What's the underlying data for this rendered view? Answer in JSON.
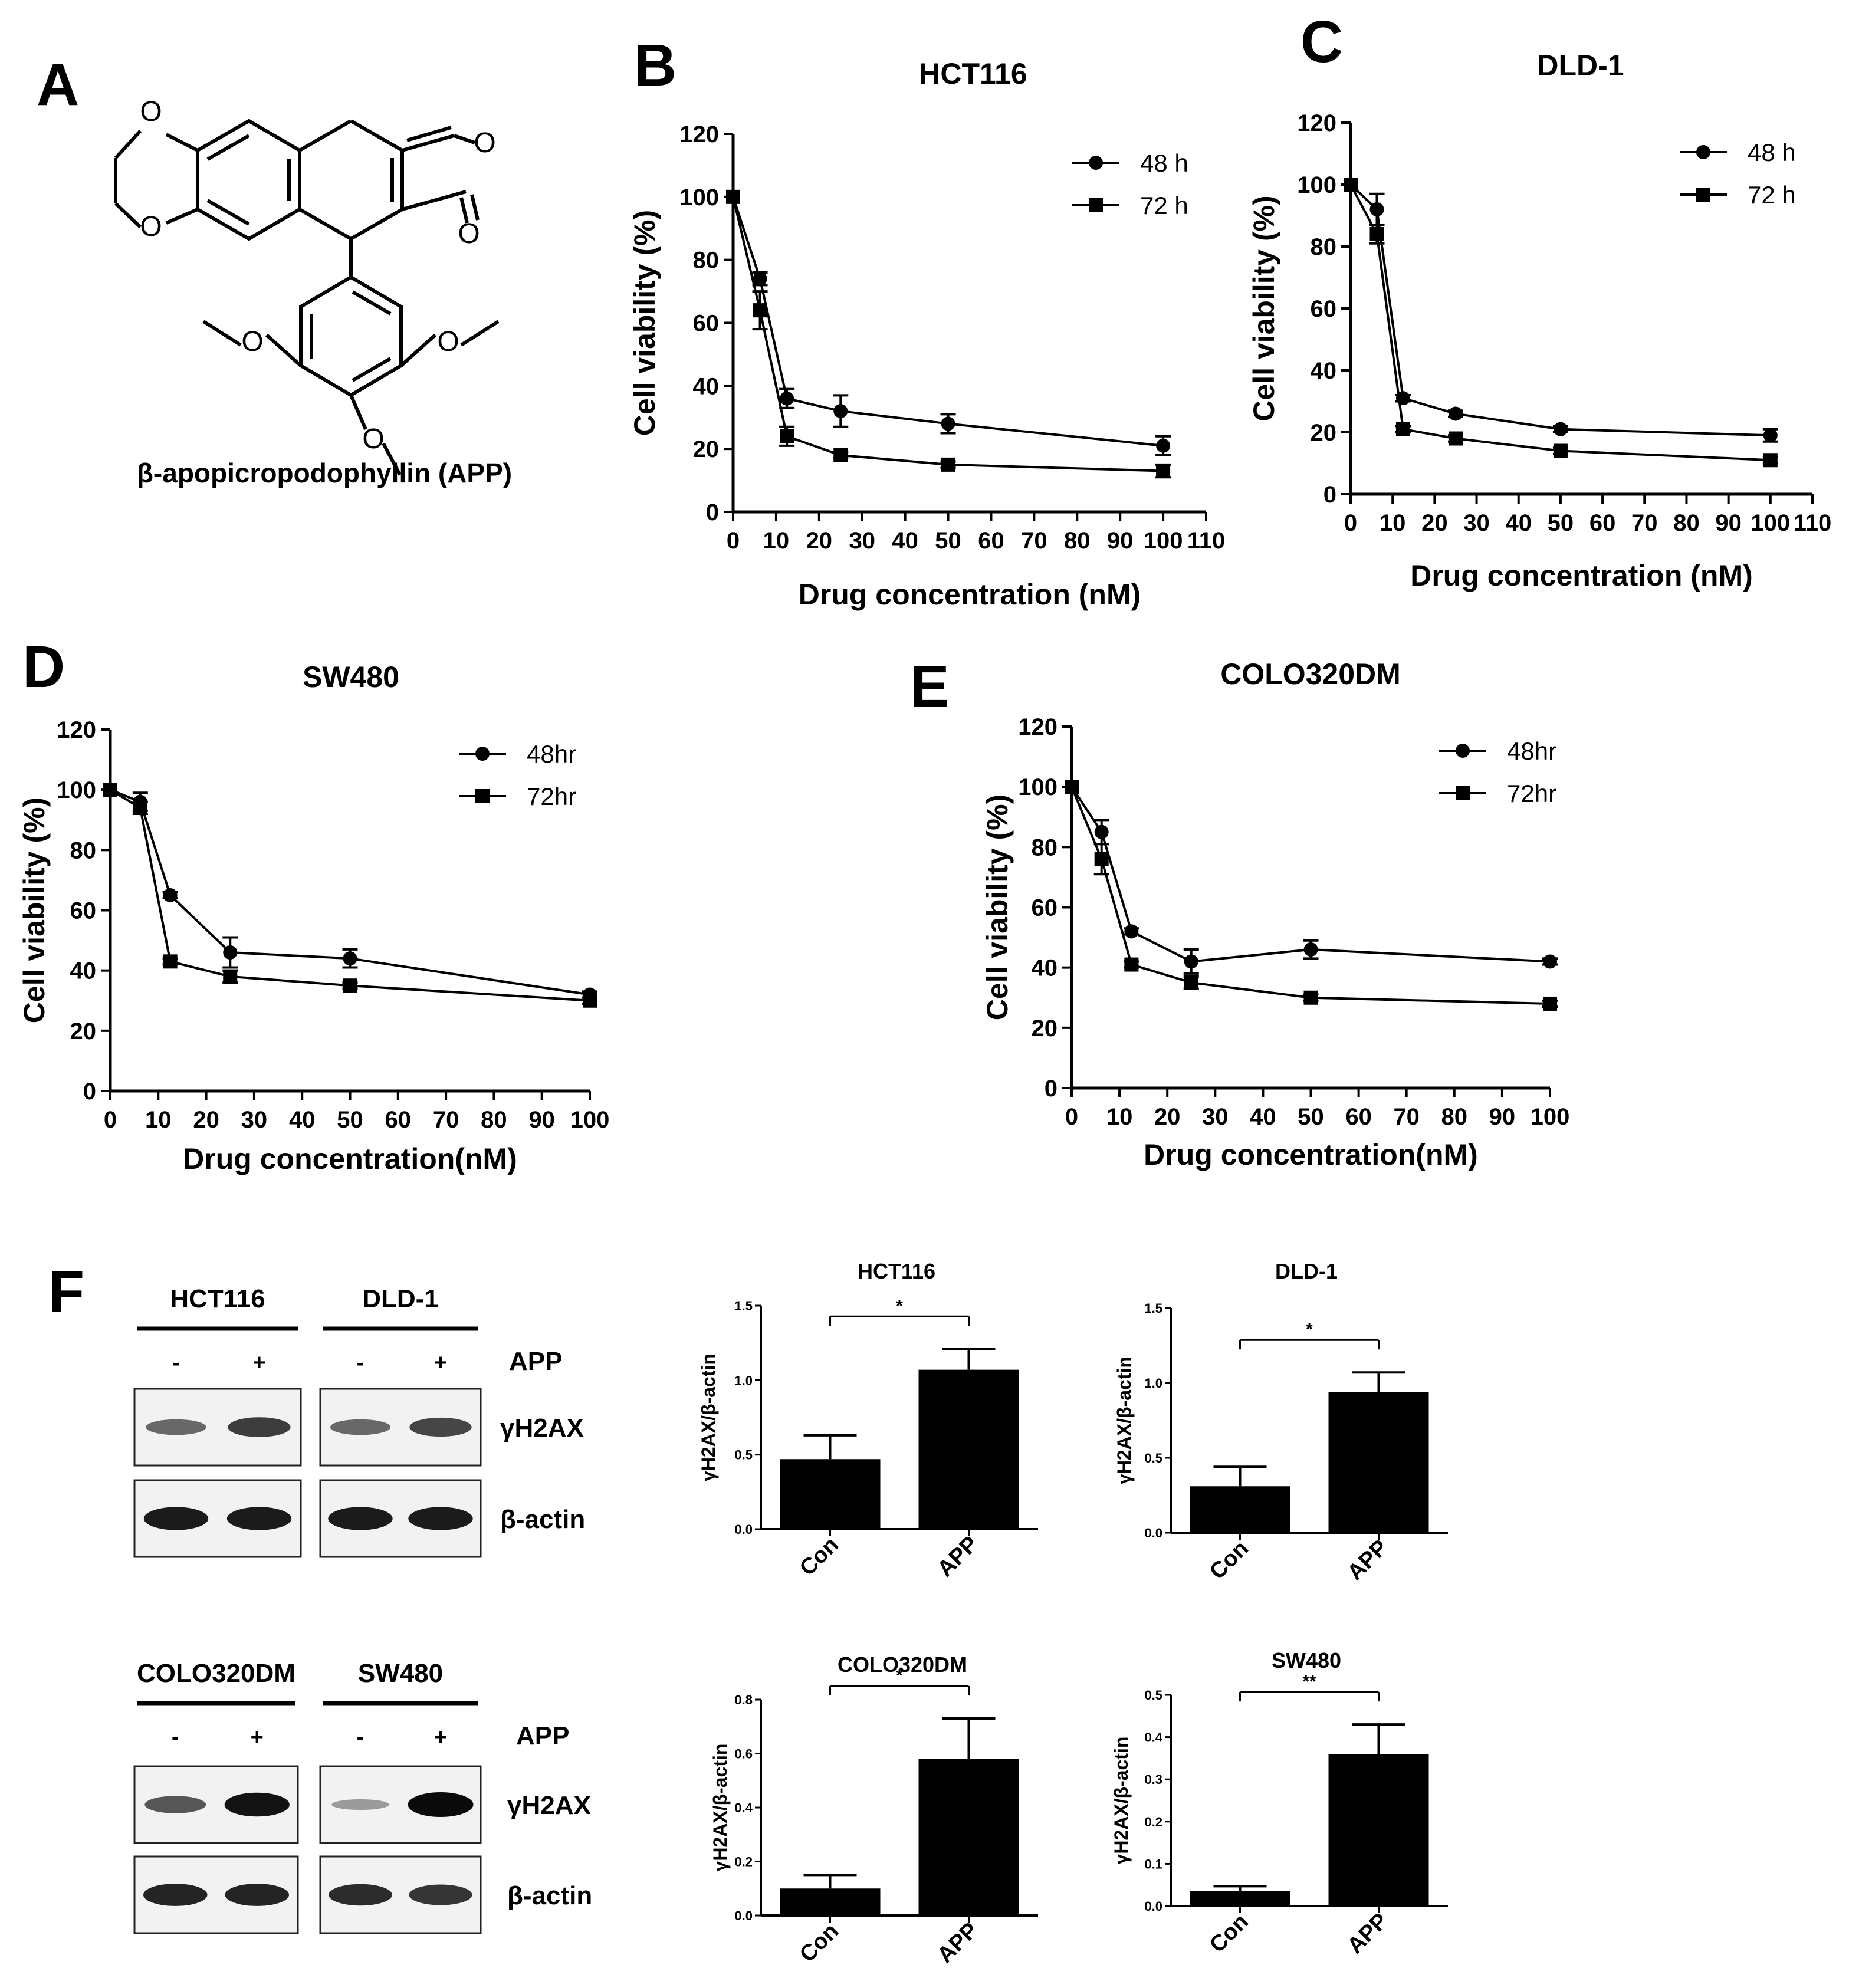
{
  "panels": {
    "a": "A",
    "b": "B",
    "c": "C",
    "d": "D",
    "e": "E",
    "f": "F"
  },
  "structure": {
    "atom_label": "O",
    "caption": "β-apopicropodophyllin (APP)"
  },
  "chart_data": [
    {
      "id": "B",
      "type": "line",
      "title": "HCT116",
      "xlabel": "Drug concentration (nM)",
      "ylabel": "Cell viability (%)",
      "xlim": [
        0,
        110
      ],
      "ylim": [
        0,
        120
      ],
      "xticks": [
        0,
        10,
        20,
        30,
        40,
        50,
        60,
        70,
        80,
        90,
        100,
        110
      ],
      "yticks": [
        0,
        20,
        40,
        60,
        80,
        100,
        120
      ],
      "legend_position": "top-right",
      "series": [
        {
          "name": "48 h",
          "marker": "circle",
          "x": [
            0,
            6.25,
            12.5,
            25,
            50,
            100
          ],
          "y": [
            100,
            74,
            36,
            32,
            28,
            21
          ],
          "err": [
            0,
            2,
            3,
            5,
            3,
            3
          ]
        },
        {
          "name": "72 h",
          "marker": "square",
          "x": [
            0,
            6.25,
            12.5,
            25,
            50,
            100
          ],
          "y": [
            100,
            64,
            24,
            18,
            15,
            13
          ],
          "err": [
            0,
            6,
            3,
            1,
            1,
            2
          ]
        }
      ]
    },
    {
      "id": "C",
      "type": "line",
      "title": "DLD-1",
      "xlabel": "Drug concentration (nM)",
      "ylabel": "Cell viability (%)",
      "xlim": [
        0,
        110
      ],
      "ylim": [
        0,
        120
      ],
      "xticks": [
        0,
        10,
        20,
        30,
        40,
        50,
        60,
        70,
        80,
        90,
        100,
        110
      ],
      "yticks": [
        0,
        20,
        40,
        60,
        80,
        100,
        120
      ],
      "legend_position": "top-right",
      "series": [
        {
          "name": "48 h",
          "marker": "circle",
          "x": [
            0,
            6.25,
            12.5,
            25,
            50,
            100
          ],
          "y": [
            100,
            92,
            31,
            26,
            21,
            19
          ],
          "err": [
            0,
            5,
            1,
            1,
            1,
            2
          ]
        },
        {
          "name": "72 h",
          "marker": "square",
          "x": [
            0,
            6.25,
            12.5,
            25,
            50,
            100
          ],
          "y": [
            100,
            84,
            21,
            18,
            14,
            11
          ],
          "err": [
            0,
            3,
            1,
            1,
            1,
            1
          ]
        }
      ]
    },
    {
      "id": "D",
      "type": "line",
      "title": "SW480",
      "xlabel": "Drug concentration(nM)",
      "ylabel": "Cell viability (%)",
      "xlim": [
        0,
        100
      ],
      "ylim": [
        0,
        120
      ],
      "xticks": [
        0,
        10,
        20,
        30,
        40,
        50,
        60,
        70,
        80,
        90,
        100
      ],
      "yticks": [
        0,
        20,
        40,
        60,
        80,
        100,
        120
      ],
      "legend_position": "top-right",
      "series": [
        {
          "name": "48hr",
          "marker": "circle",
          "x": [
            0,
            6.25,
            12.5,
            25,
            50,
            100
          ],
          "y": [
            100,
            96,
            65,
            46,
            44,
            32
          ],
          "err": [
            0,
            3,
            1,
            5,
            3,
            1
          ]
        },
        {
          "name": "72hr",
          "marker": "square",
          "x": [
            0,
            6.25,
            12.5,
            25,
            50,
            100
          ],
          "y": [
            100,
            94,
            43,
            38,
            35,
            30
          ],
          "err": [
            0,
            2,
            1,
            2,
            1,
            1
          ]
        }
      ]
    },
    {
      "id": "E",
      "type": "line",
      "title": "COLO320DM",
      "xlabel": "Drug concentration(nM)",
      "ylabel": "Cell viability (%)",
      "xlim": [
        0,
        100
      ],
      "ylim": [
        0,
        120
      ],
      "xticks": [
        0,
        10,
        20,
        30,
        40,
        50,
        60,
        70,
        80,
        90,
        100
      ],
      "yticks": [
        0,
        20,
        40,
        60,
        80,
        100,
        120
      ],
      "legend_position": "top-right",
      "series": [
        {
          "name": "48hr",
          "marker": "circle",
          "x": [
            0,
            6.25,
            12.5,
            25,
            50,
            100
          ],
          "y": [
            100,
            85,
            52,
            42,
            46,
            42
          ],
          "err": [
            0,
            4,
            1,
            4,
            3,
            1
          ]
        },
        {
          "name": "72hr",
          "marker": "square",
          "x": [
            0,
            6.25,
            12.5,
            25,
            50,
            100
          ],
          "y": [
            100,
            76,
            41,
            35,
            30,
            28
          ],
          "err": [
            0,
            5,
            1,
            2,
            1,
            1
          ]
        }
      ]
    },
    {
      "id": "F1",
      "type": "bar",
      "title": "HCT116",
      "ylabel": "γH2AX/β-actin",
      "categories": [
        "Con",
        "APP"
      ],
      "values": [
        0.47,
        1.07
      ],
      "err": [
        0.16,
        0.14
      ],
      "ylim": [
        0,
        1.5
      ],
      "yticks": [
        0.0,
        0.5,
        1.0,
        1.5
      ],
      "ytick_labels": [
        "0.0",
        "0.5",
        "1.0",
        "1.5"
      ],
      "significance": "*"
    },
    {
      "id": "F2",
      "type": "bar",
      "title": "DLD-1",
      "ylabel": "γH2AX/β-actin",
      "categories": [
        "Con",
        "APP"
      ],
      "values": [
        0.31,
        0.94
      ],
      "err": [
        0.13,
        0.13
      ],
      "ylim": [
        0,
        1.5
      ],
      "yticks": [
        0.0,
        0.5,
        1.0,
        1.5
      ],
      "ytick_labels": [
        "0.0",
        "0.5",
        "1.0",
        "1.5"
      ],
      "significance": "*"
    },
    {
      "id": "F3",
      "type": "bar",
      "title": "COLO320DM",
      "ylabel": "γH2AX/β-actin",
      "categories": [
        "Con",
        "APP"
      ],
      "values": [
        0.1,
        0.58
      ],
      "err": [
        0.05,
        0.15
      ],
      "ylim": [
        0,
        0.8
      ],
      "yticks": [
        0.0,
        0.2,
        0.4,
        0.6,
        0.8
      ],
      "ytick_labels": [
        "0.0",
        "0.2",
        "0.4",
        "0.6",
        "0.8"
      ],
      "significance": "*"
    },
    {
      "id": "F4",
      "type": "bar",
      "title": "SW480",
      "ylabel": "γH2AX/β-actin",
      "categories": [
        "Con",
        "APP"
      ],
      "values": [
        0.035,
        0.36
      ],
      "err": [
        0.012,
        0.07
      ],
      "ylim": [
        0,
        0.5
      ],
      "yticks": [
        0.0,
        0.1,
        0.2,
        0.3,
        0.4,
        0.5
      ],
      "ytick_labels": [
        "0.0",
        "0.1",
        "0.2",
        "0.3",
        "0.4",
        "0.5"
      ],
      "significance": "**"
    }
  ],
  "western": [
    {
      "groups": [
        "HCT116",
        "DLD-1"
      ],
      "treatment_label": "APP",
      "signs": [
        "-",
        "+",
        "-",
        "+"
      ],
      "rows": [
        {
          "label": "γH2AX",
          "intensity": [
            0.45,
            0.7,
            0.45,
            0.65
          ]
        },
        {
          "label": "β-actin",
          "intensity": [
            0.9,
            0.9,
            0.9,
            0.9
          ]
        }
      ]
    },
    {
      "groups": [
        "COLO320DM",
        "SW480"
      ],
      "treatment_label": "APP",
      "signs": [
        "-",
        "+",
        "-",
        "+"
      ],
      "rows": [
        {
          "label": "γH2AX",
          "intensity": [
            0.55,
            0.95,
            0.15,
            1.0
          ]
        },
        {
          "label": "β-actin",
          "intensity": [
            0.85,
            0.85,
            0.8,
            0.75
          ]
        }
      ]
    }
  ]
}
